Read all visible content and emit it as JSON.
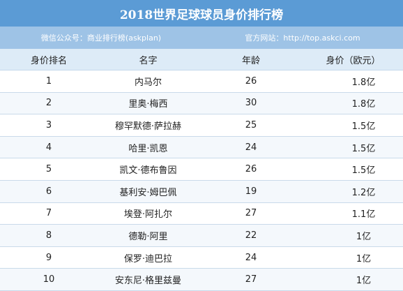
{
  "title": "2018世界足球球员身价排行榜",
  "subtitle": {
    "left": "微信公众号：商业排行榜(askplan)",
    "right": "官方网站：http://top.askci.com"
  },
  "columns": [
    "身价排名",
    "名字",
    "年龄",
    "身价（欧元）"
  ],
  "rows": [
    {
      "rank": "1",
      "name": "内马尔",
      "age": "26",
      "value": "1.8亿"
    },
    {
      "rank": "2",
      "name": "里奥·梅西",
      "age": "30",
      "value": "1.8亿"
    },
    {
      "rank": "3",
      "name": "穆罕默德·萨拉赫",
      "age": "25",
      "value": "1.5亿"
    },
    {
      "rank": "4",
      "name": "哈里·凯恩",
      "age": "24",
      "value": "1.5亿"
    },
    {
      "rank": "5",
      "name": "凯文·德布鲁因",
      "age": "26",
      "value": "1.5亿"
    },
    {
      "rank": "6",
      "name": "基利安·姆巴佩",
      "age": "19",
      "value": "1.2亿"
    },
    {
      "rank": "7",
      "name": "埃登·阿扎尔",
      "age": "27",
      "value": "1.1亿"
    },
    {
      "rank": "8",
      "name": "德勒·阿里",
      "age": "22",
      "value": "1亿"
    },
    {
      "rank": "9",
      "name": "保罗·迪巴拉",
      "age": "24",
      "value": "1亿"
    },
    {
      "rank": "10",
      "name": "安东尼·格里兹曼",
      "age": "27",
      "value": "1亿"
    }
  ]
}
